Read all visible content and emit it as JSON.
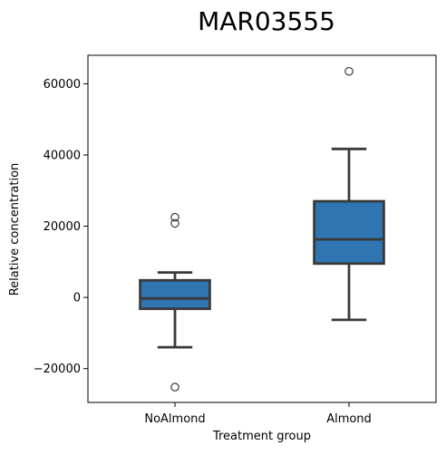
{
  "chart_data": {
    "type": "box",
    "title": "MAR03555",
    "xlabel": "Treatment group",
    "ylabel": "Relative concentration",
    "categories": [
      "NoAlmond",
      "Almond"
    ],
    "ylim": [
      -29500,
      68000
    ],
    "yticks": [
      -20000,
      0,
      20000,
      40000,
      60000
    ],
    "ytick_labels": [
      "−20000",
      "0",
      "20000",
      "40000",
      "60000"
    ],
    "grid": false,
    "box_color": "#2e75b1",
    "line_color": "#3a3a3a",
    "boxes": [
      {
        "category": "NoAlmond",
        "whisker_low": -14000,
        "q1": -3200,
        "median": -300,
        "q3": 4800,
        "whisker_high": 7000,
        "outliers": [
          22500,
          20800,
          -25200
        ]
      },
      {
        "category": "Almond",
        "whisker_low": -6300,
        "q1": 9500,
        "median": 16300,
        "q3": 27000,
        "whisker_high": 41700,
        "outliers": [
          63500
        ]
      }
    ]
  }
}
